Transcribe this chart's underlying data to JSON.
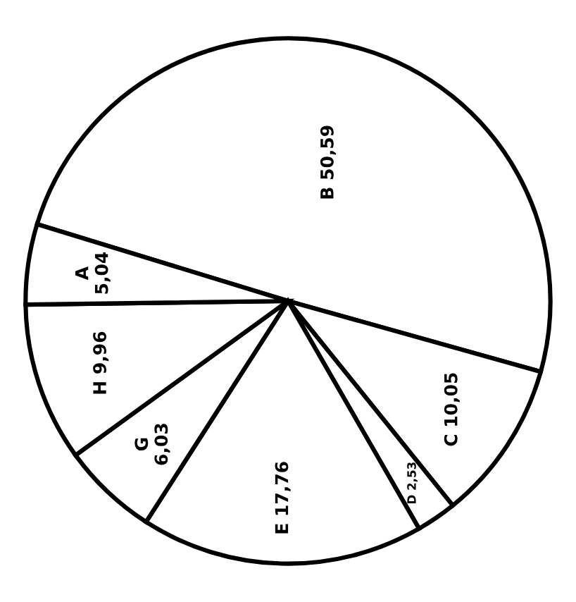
{
  "chart_data": {
    "type": "pie",
    "categories": [
      "B",
      "C",
      "D",
      "E",
      "G",
      "H",
      "A"
    ],
    "values": [
      50.59,
      10.05,
      2.53,
      17.76,
      6.03,
      9.96,
      5.04
    ],
    "value_labels": [
      "50,59",
      "10,05",
      "2,53",
      "17,76",
      "6,03",
      "9,96",
      "5,04"
    ],
    "colors": [
      "#ffffff",
      "#ffffff",
      "#ffffff",
      "#ffffff",
      "#ffffff",
      "#ffffff",
      "#ffffff"
    ],
    "legend": false
  }
}
